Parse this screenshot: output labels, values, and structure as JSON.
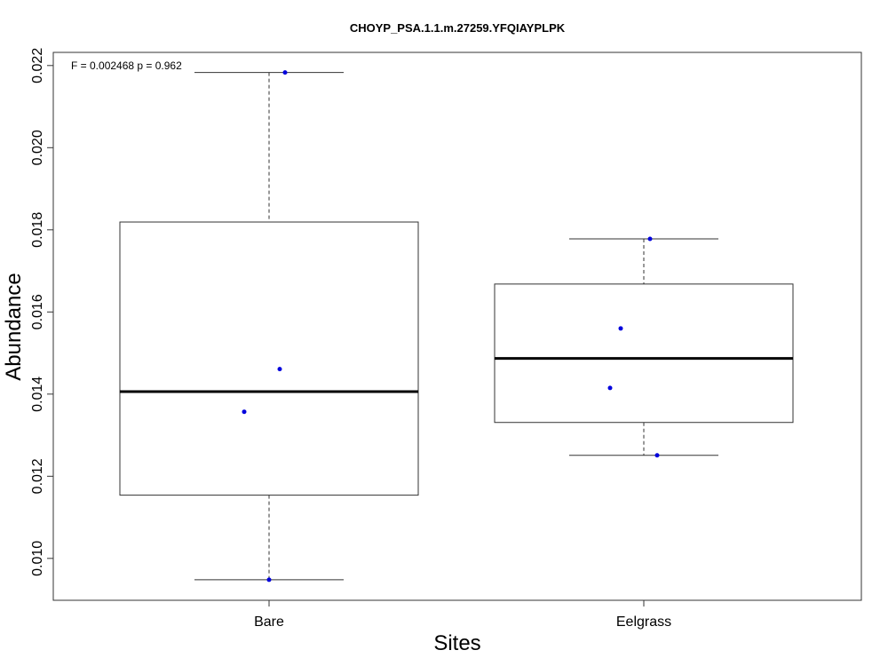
{
  "chart_data": {
    "type": "boxplot",
    "title": "CHOYP_PSA.1.1.m.27259.YFQIAYPLPK",
    "xlabel": "Sites",
    "ylabel": "Abundance",
    "annotation": "F = 0.002468 p = 0.962",
    "categories": [
      "Bare",
      "Eelgrass"
    ],
    "ylim": [
      0.00898,
      0.02232
    ],
    "yticks": [
      0.01,
      0.012,
      0.014,
      0.016,
      0.018,
      0.02,
      0.022
    ],
    "ytick_labels": [
      "0.010",
      "0.012",
      "0.014",
      "0.016",
      "0.018",
      "0.020",
      "0.022"
    ],
    "grid": false,
    "boxes": [
      {
        "category": "Bare",
        "min": 0.00948,
        "q1": 0.01154,
        "median": 0.01406,
        "q3": 0.01819,
        "max": 0.02183,
        "points": [
          0.02183,
          0.01461,
          0.01357,
          0.00948
        ]
      },
      {
        "category": "Eelgrass",
        "min": 0.01251,
        "q1": 0.01331,
        "median": 0.01487,
        "q3": 0.01668,
        "max": 0.01778,
        "points": [
          0.01778,
          0.0156,
          0.01415,
          0.01251
        ]
      }
    ],
    "colors": {
      "points": "#0000dd",
      "box": "#000000"
    }
  }
}
